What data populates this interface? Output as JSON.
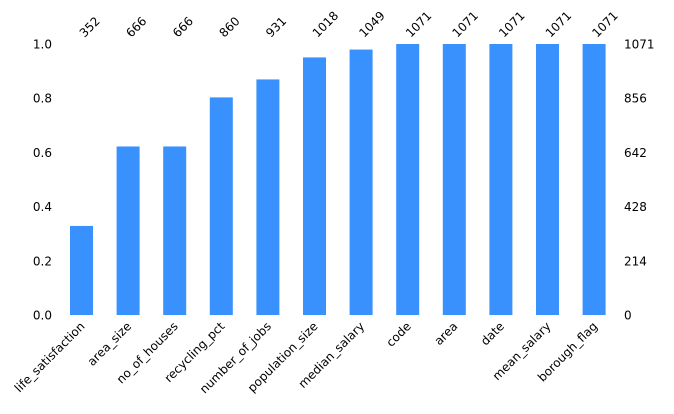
{
  "chart_data": {
    "type": "bar",
    "title": "",
    "xlabel": "",
    "ylabel": "",
    "total": 1071,
    "color": "#3891fd",
    "categories": [
      "life_satisfaction",
      "area_size",
      "no_of_houses",
      "recycling_pct",
      "number_of_jobs",
      "population_size",
      "median_salary",
      "code",
      "area",
      "date",
      "mean_salary",
      "borough_flag"
    ],
    "counts": [
      352,
      666,
      666,
      860,
      931,
      1018,
      1049,
      1071,
      1071,
      1071,
      1071,
      1071
    ],
    "ylim": [
      0,
      1
    ],
    "left_ticks": [
      "0.0",
      "0.2",
      "0.4",
      "0.6",
      "0.8",
      "1.0"
    ],
    "right_ticks": [
      "0",
      "214",
      "428",
      "642",
      "856",
      "1071"
    ],
    "grid": false,
    "legend": "none"
  }
}
